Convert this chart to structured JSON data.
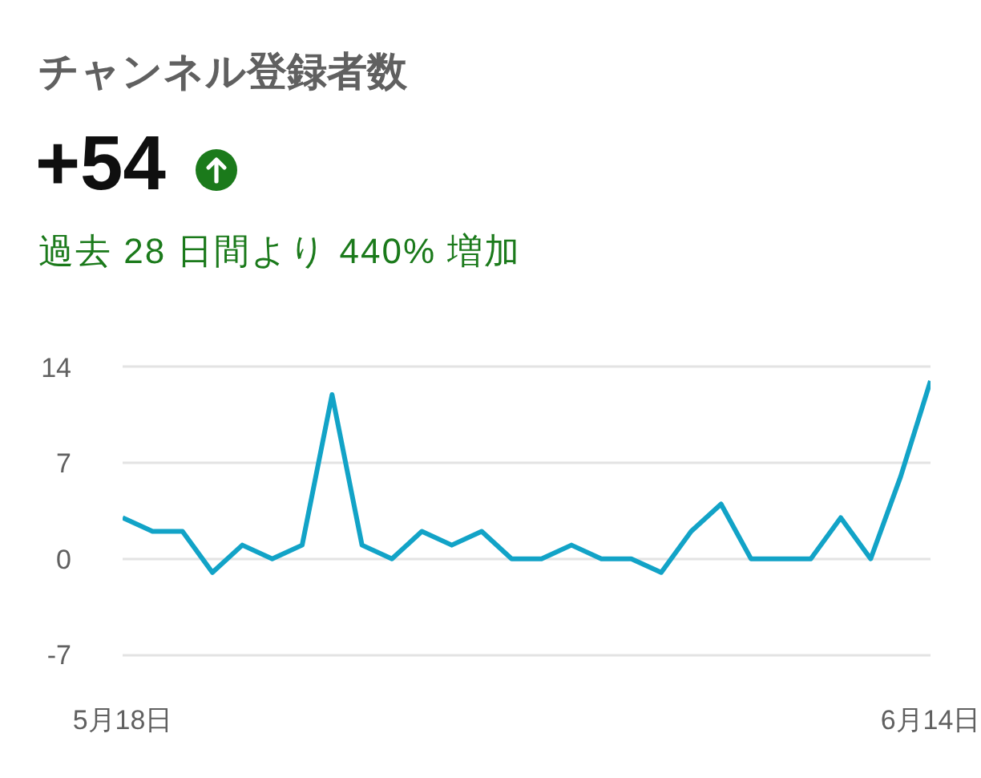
{
  "chart_data": {
    "type": "line",
    "title": "チャンネル登録者数",
    "subtitle": "過去 28 日間より 440% 増加",
    "annotations": [
      "+54"
    ],
    "categories": [
      "5月18日",
      null,
      null,
      null,
      null,
      null,
      null,
      null,
      null,
      null,
      null,
      null,
      null,
      null,
      null,
      null,
      null,
      null,
      null,
      null,
      null,
      null,
      null,
      null,
      null,
      null,
      null,
      "6月14日"
    ],
    "series": [
      {
        "color": "#12a3c7",
        "values": [
          3,
          2,
          2,
          -1,
          1,
          0,
          1,
          12,
          1,
          0,
          2,
          1,
          2,
          0,
          0,
          1,
          0,
          0,
          -1,
          2,
          4,
          0,
          0,
          0,
          3,
          0,
          6,
          13
        ]
      }
    ],
    "ylim": [
      -7,
      14
    ],
    "yticks": [
      -7,
      0,
      7,
      14
    ],
    "grid": "y",
    "line_style": "solid"
  }
}
